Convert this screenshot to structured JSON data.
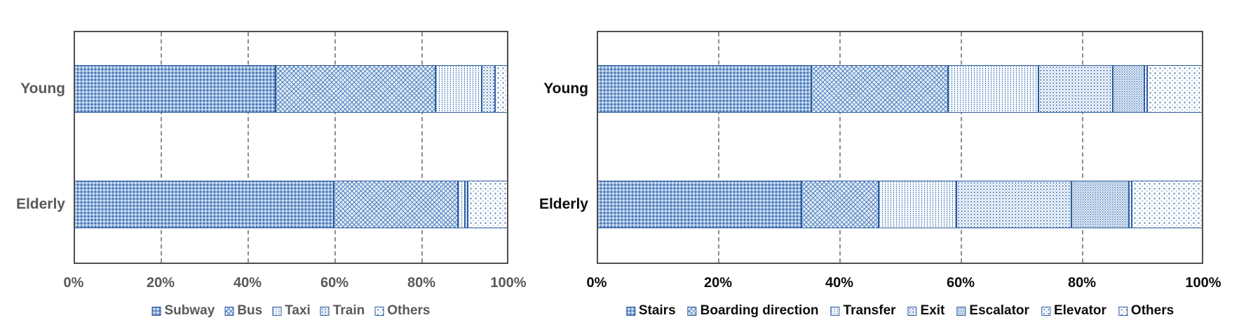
{
  "colors": {
    "pattern_blue": "#4f81bd",
    "segment_border": "#2e5c9e",
    "frame_gray": "#4d4d4d",
    "gridline_gray": "#8f8f8f",
    "left_chart_text": "#595959",
    "right_chart_text": "#0d0d0d",
    "background": "#ffffff"
  },
  "chart_data": [
    {
      "type": "bar",
      "orientation": "horizontal",
      "stacked": true,
      "unit": "percent",
      "title": "",
      "xlabel": "",
      "ylabel": "",
      "xlim": [
        0,
        100
      ],
      "x_ticks": [
        "0%",
        "20%",
        "40%",
        "60%",
        "80%",
        "100%"
      ],
      "grid_positions": [
        20,
        40,
        60,
        80
      ],
      "grid": "vertical dashed",
      "legend_position": "bottom",
      "categories": [
        "Young",
        "Elderly"
      ],
      "series": [
        {
          "name": "Subway",
          "pattern": "dense-grid",
          "values": [
            46.5,
            59.8
          ]
        },
        {
          "name": "Bus",
          "pattern": "crosshatch",
          "values": [
            36.8,
            28.6
          ]
        },
        {
          "name": "Taxi",
          "pattern": "v-stripes",
          "values": [
            10.6,
            1.6
          ]
        },
        {
          "name": "Train",
          "pattern": "dots-medium",
          "values": [
            3.0,
            0.6
          ]
        },
        {
          "name": "Others",
          "pattern": "dots-sparse",
          "values": [
            3.1,
            9.4
          ]
        }
      ]
    },
    {
      "type": "bar",
      "orientation": "horizontal",
      "stacked": true,
      "unit": "percent",
      "title": "",
      "xlabel": "",
      "ylabel": "",
      "xlim": [
        0,
        100
      ],
      "x_ticks": [
        "0%",
        "20%",
        "40%",
        "60%",
        "80%",
        "100%"
      ],
      "grid_positions": [
        20,
        40,
        60,
        80
      ],
      "grid": "vertical dashed",
      "legend_position": "bottom",
      "categories": [
        "Young",
        "Elderly"
      ],
      "series": [
        {
          "name": "Stairs",
          "pattern": "dense-grid",
          "values": [
            35.4,
            33.8
          ]
        },
        {
          "name": "Boarding direction",
          "pattern": "crosshatch",
          "values": [
            22.5,
            12.7
          ]
        },
        {
          "name": "Transfer",
          "pattern": "v-stripes",
          "values": [
            14.9,
            12.8
          ]
        },
        {
          "name": "Exit",
          "pattern": "dots-medium",
          "values": [
            12.3,
            19.0
          ]
        },
        {
          "name": "Escalator",
          "pattern": "dots-small",
          "values": [
            5.2,
            9.5
          ]
        },
        {
          "name": "Elevator",
          "pattern": "dots-large",
          "values": [
            0.5,
            0.4
          ]
        },
        {
          "name": "Others",
          "pattern": "dots-sparse",
          "values": [
            9.2,
            11.8
          ]
        }
      ]
    }
  ]
}
